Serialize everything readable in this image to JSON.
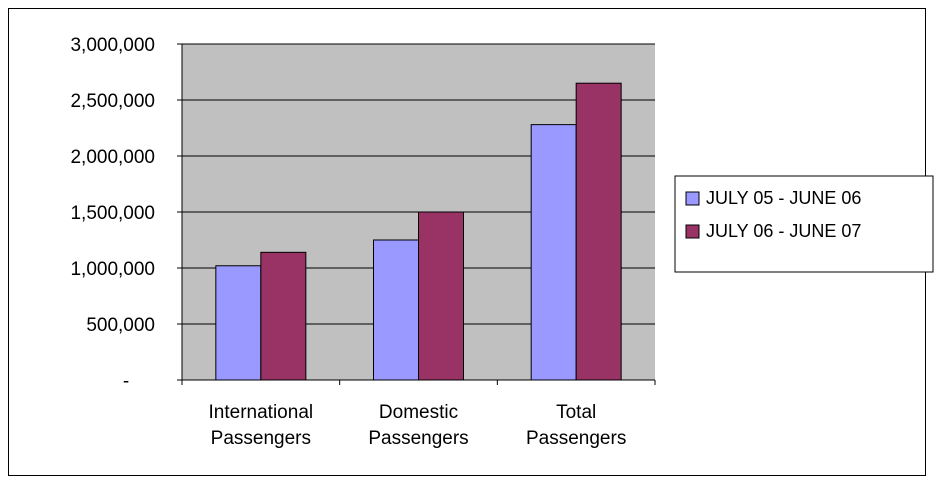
{
  "chart_data": {
    "type": "bar",
    "categories": [
      [
        "International",
        "Passengers"
      ],
      [
        "Domestic",
        "Passengers"
      ],
      [
        "Total",
        "Passengers"
      ]
    ],
    "series": [
      {
        "name": "JULY 05 - JUNE 06",
        "color": "#9999ff",
        "values": [
          1020000,
          1250000,
          2280000
        ]
      },
      {
        "name": "JULY 06 - JUNE 07",
        "color": "#993366",
        "values": [
          1140000,
          1500000,
          2650000
        ]
      }
    ],
    "ylim": [
      0,
      3000000
    ],
    "yticks": [
      0,
      500000,
      1000000,
      1500000,
      2000000,
      2500000,
      3000000
    ],
    "ytick_labels": [
      "-",
      "500,000",
      "1,000,000",
      "1,500,000",
      "2,000,000",
      "2,500,000",
      "3,000,000"
    ],
    "grid": true,
    "plot_background": "#c0c0c0",
    "legend_position": "right",
    "title": "",
    "xlabel": "",
    "ylabel": ""
  }
}
